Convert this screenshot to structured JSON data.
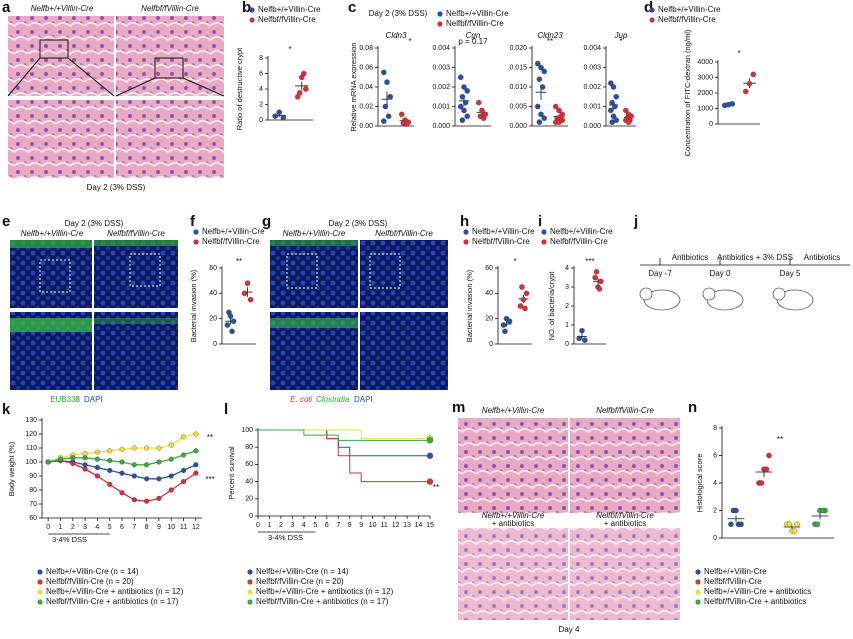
{
  "chart_data": [
    {
      "type": "dot",
      "label": "b",
      "ylabel": "Ratio of destructive crypt",
      "ylim": [
        0,
        8
      ],
      "yticks": [
        0,
        2,
        4,
        6,
        8
      ],
      "annotations": [
        "*"
      ],
      "series": [
        {
          "name": "Nelfb+/+Villin-Cre",
          "color": "#2d4fa3",
          "values": [
            0.5,
            1,
            0.3
          ]
        },
        {
          "name": "Nelfbf/fVillin-Cre",
          "color": "#d6303a",
          "values": [
            3,
            5.5,
            4,
            3.5,
            6
          ]
        }
      ]
    },
    {
      "type": "dot",
      "label": "c",
      "title": "Day 2 (3% DSS)",
      "ylabel": "Relative mRNA expression",
      "subtitle": "Cldn3",
      "ylim": [
        0,
        0.08
      ],
      "yticks": [
        {
          "value": 0,
          "label": "0.00"
        },
        {
          "value": 0.02,
          "label": "0.02"
        },
        {
          "value": 0.04,
          "label": "0.04"
        },
        {
          "value": 0.06,
          "label": "0.06"
        },
        {
          "value": 0.08,
          "label": "0.08"
        }
      ],
      "annotations": [
        "*"
      ],
      "series": [
        {
          "name": "Nelfb+/+Villin-Cre",
          "color": "#2d4fa3",
          "values": [
            0.055,
            0.045,
            0.03,
            0.02,
            0.01,
            0.005
          ]
        },
        {
          "name": "Nelfbf/fVillin-Cre",
          "color": "#d6303a",
          "values": [
            0.012,
            0.006,
            0.004,
            0.003,
            0.002
          ]
        }
      ]
    },
    {
      "type": "dot",
      "subtitle": "Cgn",
      "ylim": [
        0,
        0.004
      ],
      "yticks": [
        {
          "value": 0,
          "label": "0.000"
        },
        {
          "value": 0.001,
          "label": "0.001"
        },
        {
          "value": 0.002,
          "label": "0.002"
        },
        {
          "value": 0.003,
          "label": "0.003"
        },
        {
          "value": 0.004,
          "label": "0.004"
        }
      ],
      "annotations": [
        "p = 0.17"
      ],
      "series": [
        {
          "color": "#2d4fa3",
          "values": [
            0.0025,
            0.002,
            0.0018,
            0.0015,
            0.0012,
            0.001,
            0.0008,
            0.0005,
            0.0003
          ]
        },
        {
          "color": "#d6303a",
          "values": [
            0.0012,
            0.0008,
            0.0006,
            0.0005,
            0.0004
          ]
        }
      ]
    },
    {
      "type": "dot",
      "subtitle": "Cldn23",
      "ylim": [
        0,
        0.02
      ],
      "yticks": [
        {
          "value": 0,
          "label": "0.000"
        },
        {
          "value": 0.005,
          "label": "0.005"
        },
        {
          "value": 0.01,
          "label": "0.010"
        },
        {
          "value": 0.015,
          "label": "0.015"
        },
        {
          "value": 0.02,
          "label": "0.020"
        }
      ],
      "annotations": [
        "**"
      ],
      "series": [
        {
          "color": "#2d4fa3",
          "values": [
            0.016,
            0.015,
            0.014,
            0.012,
            0.01,
            0.005,
            0.003,
            0.002,
            0.001
          ]
        },
        {
          "color": "#d6303a",
          "values": [
            0.005,
            0.004,
            0.003,
            0.002,
            0.002,
            0.001,
            0.001,
            0.0015
          ]
        }
      ]
    },
    {
      "type": "dot",
      "subtitle": "Jup",
      "ylim": [
        0,
        0.004
      ],
      "yticks": [
        {
          "value": 0,
          "label": "0.000"
        },
        {
          "value": 0.001,
          "label": "0.001"
        },
        {
          "value": 0.002,
          "label": "0.002"
        },
        {
          "value": 0.003,
          "label": "0.003"
        },
        {
          "value": 0.004,
          "label": "0.004"
        }
      ],
      "annotations": [
        "*"
      ],
      "series": [
        {
          "color": "#2d4fa3",
          "values": [
            0.0022,
            0.002,
            0.0015,
            0.0012,
            0.001,
            0.0008,
            0.0005,
            0.0003,
            0.0002
          ]
        },
        {
          "color": "#d6303a",
          "values": [
            0.0008,
            0.0006,
            0.0005,
            0.0004,
            0.0003,
            0.0003,
            0.0002
          ]
        }
      ]
    },
    {
      "type": "dot",
      "label": "d",
      "ylabel": "Concentration of FITC-dextran (ng/ml)",
      "ylim": [
        0,
        4000
      ],
      "yticks": [
        0,
        1000,
        2000,
        3000,
        4000
      ],
      "annotations": [
        "*"
      ],
      "series": [
        {
          "name": "Nelfb+/+Villin-Cre",
          "color": "#2d4fa3",
          "values": [
            1200,
            1250,
            1300
          ]
        },
        {
          "name": "Nelfbf/fVillin-Cre",
          "color": "#d6303a",
          "values": [
            2100,
            2600,
            3200
          ]
        }
      ]
    },
    {
      "type": "dot",
      "label": "f",
      "ylabel": "Bacterial invasion (%)",
      "ylim": [
        0,
        60
      ],
      "yticks": [
        0,
        20,
        40,
        60
      ],
      "annotations": [
        "**"
      ],
      "series": [
        {
          "name": "Nelfb+/+Villin-Cre",
          "color": "#2d4fa3",
          "values": [
            15,
            22,
            18,
            25,
            10
          ]
        },
        {
          "name": "Nelfbf/fVillin-Cre",
          "color": "#d6303a",
          "values": [
            40,
            48,
            35
          ]
        }
      ]
    },
    {
      "type": "dot",
      "label": "h",
      "ylabel": "Bacterial invasion (%)",
      "ylim": [
        0,
        60
      ],
      "yticks": [
        0,
        20,
        40,
        60
      ],
      "annotations": [
        "*"
      ],
      "series": [
        {
          "name": "Nelfb+/+Villin-Cre",
          "color": "#2d4fa3",
          "values": [
            15,
            20,
            18,
            10
          ]
        },
        {
          "name": "Nelfbf/fVillin-Cre",
          "color": "#d6303a",
          "values": [
            30,
            35,
            40,
            45,
            28
          ]
        }
      ]
    },
    {
      "type": "dot",
      "label": "i",
      "ylabel": "NO. of bacteria/crypt",
      "ylim": [
        0,
        4
      ],
      "yticks": [
        0,
        1,
        2,
        3,
        4
      ],
      "annotations": [
        "***"
      ],
      "series": [
        {
          "name": "Nelfb+/+Villin-Cre",
          "color": "#2d4fa3",
          "values": [
            0.3,
            0.7,
            0.2
          ]
        },
        {
          "name": "Nelfbf/fVillin-Cre",
          "color": "#d6303a",
          "values": [
            3.5,
            3,
            3.3,
            3.8,
            2.9
          ]
        }
      ]
    },
    {
      "type": "line",
      "label": "k",
      "ylabel": "Body weight (%)",
      "xlabel": "3-4% DSS",
      "ylim": [
        60,
        130
      ],
      "yticks": [
        60,
        70,
        80,
        90,
        100,
        110,
        120,
        130
      ],
      "xlim": [
        -0.5,
        12.5
      ],
      "x": [
        0,
        1,
        2,
        3,
        4,
        5,
        6,
        7,
        8,
        9,
        10,
        11,
        12
      ],
      "xticks": [
        0,
        1,
        2,
        3,
        4,
        5,
        6,
        7,
        8,
        9,
        10,
        11,
        12
      ],
      "annotations": [
        "**",
        "***"
      ],
      "series": [
        {
          "name": "Nelfb+/+Villin-Cre (n = 14)",
          "color": "#2d4fa3",
          "values": [
            100,
            101,
            100,
            98,
            96,
            94,
            92,
            90,
            88,
            88,
            90,
            94,
            98
          ]
        },
        {
          "name": "Nelfbf/fVillin-Cre (n = 20)",
          "color": "#d6303a",
          "values": [
            100,
            101,
            99,
            95,
            90,
            84,
            78,
            73,
            72,
            74,
            80,
            86,
            92
          ]
        },
        {
          "name": "Nelfb+/+Villin-Cre + antibiotics (n = 12)",
          "color": "#f2dc3c",
          "values": [
            100,
            103,
            105,
            106,
            107,
            108,
            109,
            110,
            110,
            110,
            112,
            118,
            120
          ]
        },
        {
          "name": "Nelfbf/fVillin-Cre + antibiotics (n = 17)",
          "color": "#3aa845",
          "values": [
            100,
            102,
            103,
            103,
            102,
            101,
            100,
            98,
            98,
            100,
            102,
            105,
            108
          ]
        }
      ]
    },
    {
      "type": "step",
      "label": "l",
      "ylabel": "Percent survival",
      "xlabel": "3-4% DSS",
      "ylim": [
        0,
        100
      ],
      "yticks": [
        0,
        20,
        40,
        60,
        80,
        100
      ],
      "xlim": [
        0,
        15
      ],
      "x": [
        0,
        1,
        2,
        3,
        4,
        5,
        6,
        7,
        8,
        9,
        10,
        11,
        12,
        13,
        14,
        15
      ],
      "xticks": [
        0,
        1,
        2,
        3,
        4,
        5,
        6,
        7,
        8,
        9,
        10,
        11,
        12,
        13,
        14,
        15
      ],
      "annotations": [
        "**"
      ],
      "series": [
        {
          "name": "Nelfb+/+Villin-Cre (n = 14)",
          "color": "#2d4fa3",
          "values": [
            100,
            100,
            100,
            100,
            100,
            100,
            90,
            80,
            70,
            70,
            70,
            70,
            70,
            70,
            70,
            70
          ]
        },
        {
          "name": "Nelfbf/fVillin-Cre (n = 20)",
          "color": "#d6303a",
          "values": [
            100,
            100,
            100,
            100,
            100,
            100,
            90,
            70,
            50,
            40,
            40,
            40,
            40,
            40,
            40,
            40
          ]
        },
        {
          "name": "Nelfb+/+Villin-Cre + antibiotics (n = 12)",
          "color": "#f2dc3c",
          "values": [
            100,
            100,
            100,
            100,
            100,
            100,
            100,
            100,
            100,
            90,
            90,
            90,
            90,
            90,
            90,
            90
          ]
        },
        {
          "name": "Nelfbf/fVillin-Cre + antibiotics (n = 17)",
          "color": "#3aa845",
          "values": [
            100,
            100,
            100,
            100,
            94,
            94,
            94,
            88,
            88,
            88,
            88,
            88,
            88,
            88,
            88,
            88
          ]
        }
      ]
    },
    {
      "type": "dot",
      "label": "n",
      "ylabel": "Histological score",
      "ylim": [
        0,
        8
      ],
      "yticks": [
        0,
        2,
        4,
        6,
        8
      ],
      "annotations": [
        "**"
      ],
      "series": [
        {
          "name": "Nelfb+/+Villin-Cre",
          "color": "#2d4fa3",
          "values": [
            1,
            2,
            1,
            2,
            1
          ]
        },
        {
          "name": "Nelfbf/fVillin-Cre",
          "color": "#d6303a",
          "values": [
            4,
            5,
            6,
            4,
            5
          ]
        },
        {
          "name": "Nelfb+/+Villin-Cre + antibiotics",
          "color": "#f2dc3c",
          "values": [
            1,
            0.5,
            1,
            1,
            0.5
          ]
        },
        {
          "name": "Nelfbf/fVillin-Cre + antibiotics",
          "color": "#3aa845",
          "values": [
            1,
            2,
            2,
            1,
            2
          ]
        }
      ]
    }
  ],
  "panels": {
    "a": {
      "label": "a",
      "col1": "Nelfb+/+Villin-Cre",
      "col2": "Nelfbf/fVillin-Cre",
      "caption": "Day 2 (3% DSS)"
    },
    "e": {
      "label": "e",
      "title": "Day 2 (3% DSS)",
      "col1": "Nelfb+/+Villin-Cre",
      "col2": "Nelfbf/fVillin-Cre",
      "stain1": "EUB338",
      "stain2": "DAPI"
    },
    "g": {
      "label": "g",
      "title": "Day 2 (3% DSS)",
      "col1": "Nelfb+/+Villin-Cre",
      "col2": "Nelfbf/fVillin-Cre",
      "stain1": "E. coli",
      "stain2": "Clostridia",
      "stain3": "DAPI"
    },
    "j": {
      "label": "j",
      "phase1": "Antibiotics",
      "phase2": "Antibiotics + 3% DSS",
      "phase3": "Antibiotics",
      "day1": "Day -7",
      "day2": "Day 0",
      "day3": "Day 5"
    },
    "m": {
      "label": "m",
      "img1": "Nelfb+/+Villin-Cre",
      "img2": "Nelfbf/fVillin-Cre",
      "img3a": "Nelfb+/+Villin-Cre",
      "img3b": "+ antibiotics",
      "img4a": "Nelfbf/fVillin-Cre",
      "img4b": "+ antibiotics",
      "caption": "Day 4"
    }
  }
}
